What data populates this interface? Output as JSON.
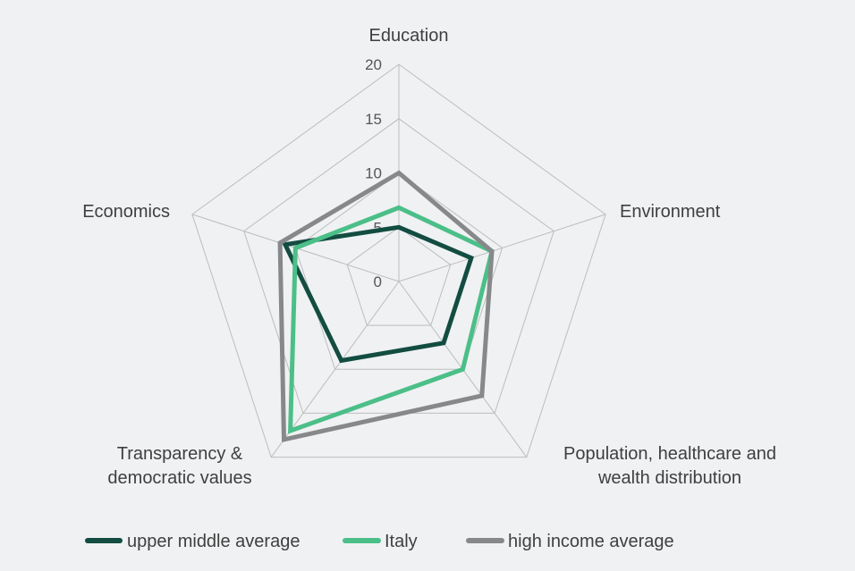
{
  "chart_data": {
    "type": "radar",
    "axes": [
      [
        "Education"
      ],
      [
        "Environment"
      ],
      [
        "Population, healthcare and",
        "wealth distribution"
      ],
      [
        "Transparency &",
        "democratic values"
      ],
      [
        "Economics"
      ]
    ],
    "rlim": [
      0,
      20
    ],
    "ticks": [
      0,
      5,
      10,
      15,
      20
    ],
    "grid": true,
    "legend_position": "bottom",
    "series": [
      {
        "name": "upper middle average",
        "color": "#134d42",
        "values": [
          5,
          7,
          7,
          9,
          11
        ]
      },
      {
        "name": "Italy",
        "color": "#4bbf87",
        "values": [
          6.8,
          9,
          10,
          17,
          10
        ]
      },
      {
        "name": "high income average",
        "color": "#878889",
        "values": [
          10,
          9,
          13,
          18,
          11.5
        ]
      }
    ]
  }
}
